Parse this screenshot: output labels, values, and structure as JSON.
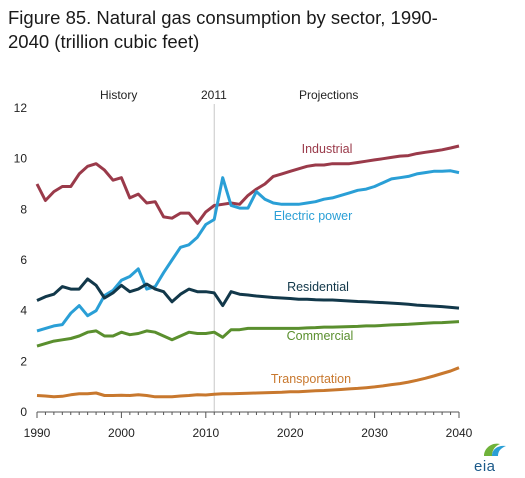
{
  "title_line1": "Figure 85. Natural gas consumption by sector, 1990-",
  "title_line2": "2040 (trillion cubic feet)",
  "annotations": {
    "history": "History",
    "divider_year": "2011",
    "projections": "Projections"
  },
  "logo_text": "eia",
  "colors": {
    "industrial": "#9a3a4a",
    "electric_power": "#2a9fd6",
    "residential": "#12384a",
    "commercial": "#5a8f2e",
    "transportation": "#c8782e",
    "divider": "#c8c8c8",
    "axis": "#555555"
  },
  "chart_data": {
    "type": "line",
    "title": "Figure 85. Natural gas consumption by sector, 1990-2040 (trillion cubic feet)",
    "xlabel": "",
    "ylabel": "",
    "xlim": [
      1990,
      2040
    ],
    "ylim": [
      0,
      12
    ],
    "x_ticks": [
      1990,
      2000,
      2010,
      2020,
      2030,
      2040
    ],
    "y_ticks": [
      0,
      2,
      4,
      6,
      8,
      10,
      12
    ],
    "grid": false,
    "x": [
      1990,
      1991,
      1992,
      1993,
      1994,
      1995,
      1996,
      1997,
      1998,
      1999,
      2000,
      2001,
      2002,
      2003,
      2004,
      2005,
      2006,
      2007,
      2008,
      2009,
      2010,
      2011,
      2012,
      2013,
      2014,
      2015,
      2016,
      2017,
      2018,
      2019,
      2020,
      2021,
      2022,
      2023,
      2024,
      2025,
      2026,
      2027,
      2028,
      2029,
      2030,
      2031,
      2032,
      2033,
      2034,
      2035,
      2036,
      2037,
      2038,
      2039,
      2040
    ],
    "series": [
      {
        "name": "Industrial",
        "color_key": "industrial",
        "values": [
          9.0,
          8.35,
          8.7,
          8.9,
          8.9,
          9.4,
          9.7,
          9.8,
          9.55,
          9.15,
          9.25,
          8.45,
          8.6,
          8.25,
          8.3,
          7.7,
          7.65,
          7.85,
          7.85,
          7.45,
          7.9,
          8.15,
          8.2,
          8.25,
          8.2,
          8.55,
          8.8,
          9.0,
          9.3,
          9.4,
          9.5,
          9.6,
          9.7,
          9.75,
          9.75,
          9.8,
          9.8,
          9.8,
          9.85,
          9.9,
          9.95,
          10.0,
          10.05,
          10.1,
          10.12,
          10.2,
          10.25,
          10.3,
          10.35,
          10.42,
          10.5
        ]
      },
      {
        "name": "Electric power",
        "color_key": "electric_power",
        "values": [
          3.2,
          3.3,
          3.4,
          3.45,
          3.9,
          4.2,
          3.8,
          4.0,
          4.6,
          4.8,
          5.2,
          5.35,
          5.65,
          4.85,
          4.95,
          5.5,
          6.0,
          6.5,
          6.6,
          6.9,
          7.4,
          7.6,
          9.25,
          8.15,
          8.05,
          8.05,
          8.7,
          8.4,
          8.25,
          8.2,
          8.2,
          8.2,
          8.25,
          8.3,
          8.4,
          8.45,
          8.55,
          8.65,
          8.75,
          8.8,
          8.9,
          9.05,
          9.2,
          9.25,
          9.3,
          9.4,
          9.45,
          9.5,
          9.5,
          9.52,
          9.45
        ]
      },
      {
        "name": "Residential",
        "color_key": "residential",
        "values": [
          4.4,
          4.55,
          4.65,
          4.95,
          4.85,
          4.85,
          5.25,
          5.0,
          4.5,
          4.7,
          5.0,
          4.75,
          4.85,
          5.05,
          4.85,
          4.75,
          4.35,
          4.65,
          4.85,
          4.75,
          4.75,
          4.7,
          4.2,
          4.75,
          4.65,
          4.62,
          4.58,
          4.55,
          4.52,
          4.5,
          4.48,
          4.45,
          4.45,
          4.43,
          4.42,
          4.42,
          4.4,
          4.38,
          4.36,
          4.35,
          4.33,
          4.32,
          4.3,
          4.28,
          4.25,
          4.22,
          4.2,
          4.18,
          4.16,
          4.13,
          4.1
        ]
      },
      {
        "name": "Commercial",
        "color_key": "commercial",
        "values": [
          2.6,
          2.7,
          2.8,
          2.85,
          2.9,
          3.0,
          3.15,
          3.2,
          3.0,
          3.0,
          3.15,
          3.05,
          3.1,
          3.2,
          3.15,
          3.0,
          2.85,
          3.0,
          3.15,
          3.1,
          3.1,
          3.15,
          2.95,
          3.25,
          3.25,
          3.3,
          3.3,
          3.3,
          3.3,
          3.3,
          3.3,
          3.3,
          3.32,
          3.33,
          3.35,
          3.35,
          3.36,
          3.37,
          3.38,
          3.4,
          3.4,
          3.42,
          3.44,
          3.45,
          3.46,
          3.48,
          3.5,
          3.52,
          3.53,
          3.55,
          3.57
        ]
      },
      {
        "name": "Transportation",
        "color_key": "transportation",
        "values": [
          0.65,
          0.63,
          0.6,
          0.62,
          0.68,
          0.72,
          0.72,
          0.75,
          0.65,
          0.65,
          0.66,
          0.65,
          0.68,
          0.65,
          0.6,
          0.6,
          0.6,
          0.63,
          0.65,
          0.68,
          0.67,
          0.7,
          0.72,
          0.72,
          0.73,
          0.74,
          0.75,
          0.76,
          0.77,
          0.78,
          0.8,
          0.8,
          0.82,
          0.84,
          0.85,
          0.87,
          0.89,
          0.91,
          0.93,
          0.96,
          0.99,
          1.03,
          1.08,
          1.12,
          1.18,
          1.25,
          1.33,
          1.42,
          1.52,
          1.62,
          1.75
        ]
      }
    ]
  }
}
